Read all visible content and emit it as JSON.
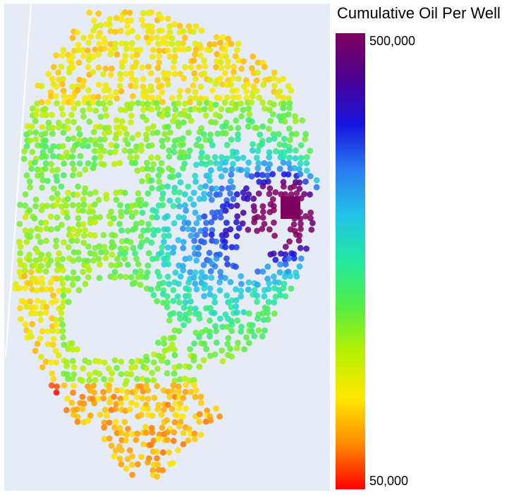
{
  "chart_data": {
    "type": "scatter",
    "title": "",
    "colorbar": {
      "title": "Cumulative Oil Per Well",
      "max_label": "500,000",
      "min_label": "50,000",
      "range": [
        50000,
        500000
      ],
      "colorscale": [
        "#ff0000",
        "#ff8c00",
        "#ffe800",
        "#b8f000",
        "#55ee44",
        "#22e8a0",
        "#22c4e8",
        "#2a7cf0",
        "#1515e0",
        "#4a0090",
        "#800060"
      ]
    },
    "background": "#e5ecf6",
    "points_description": "Well locations forming a county-shaped cluster, colored by cumulative oil per well"
  }
}
